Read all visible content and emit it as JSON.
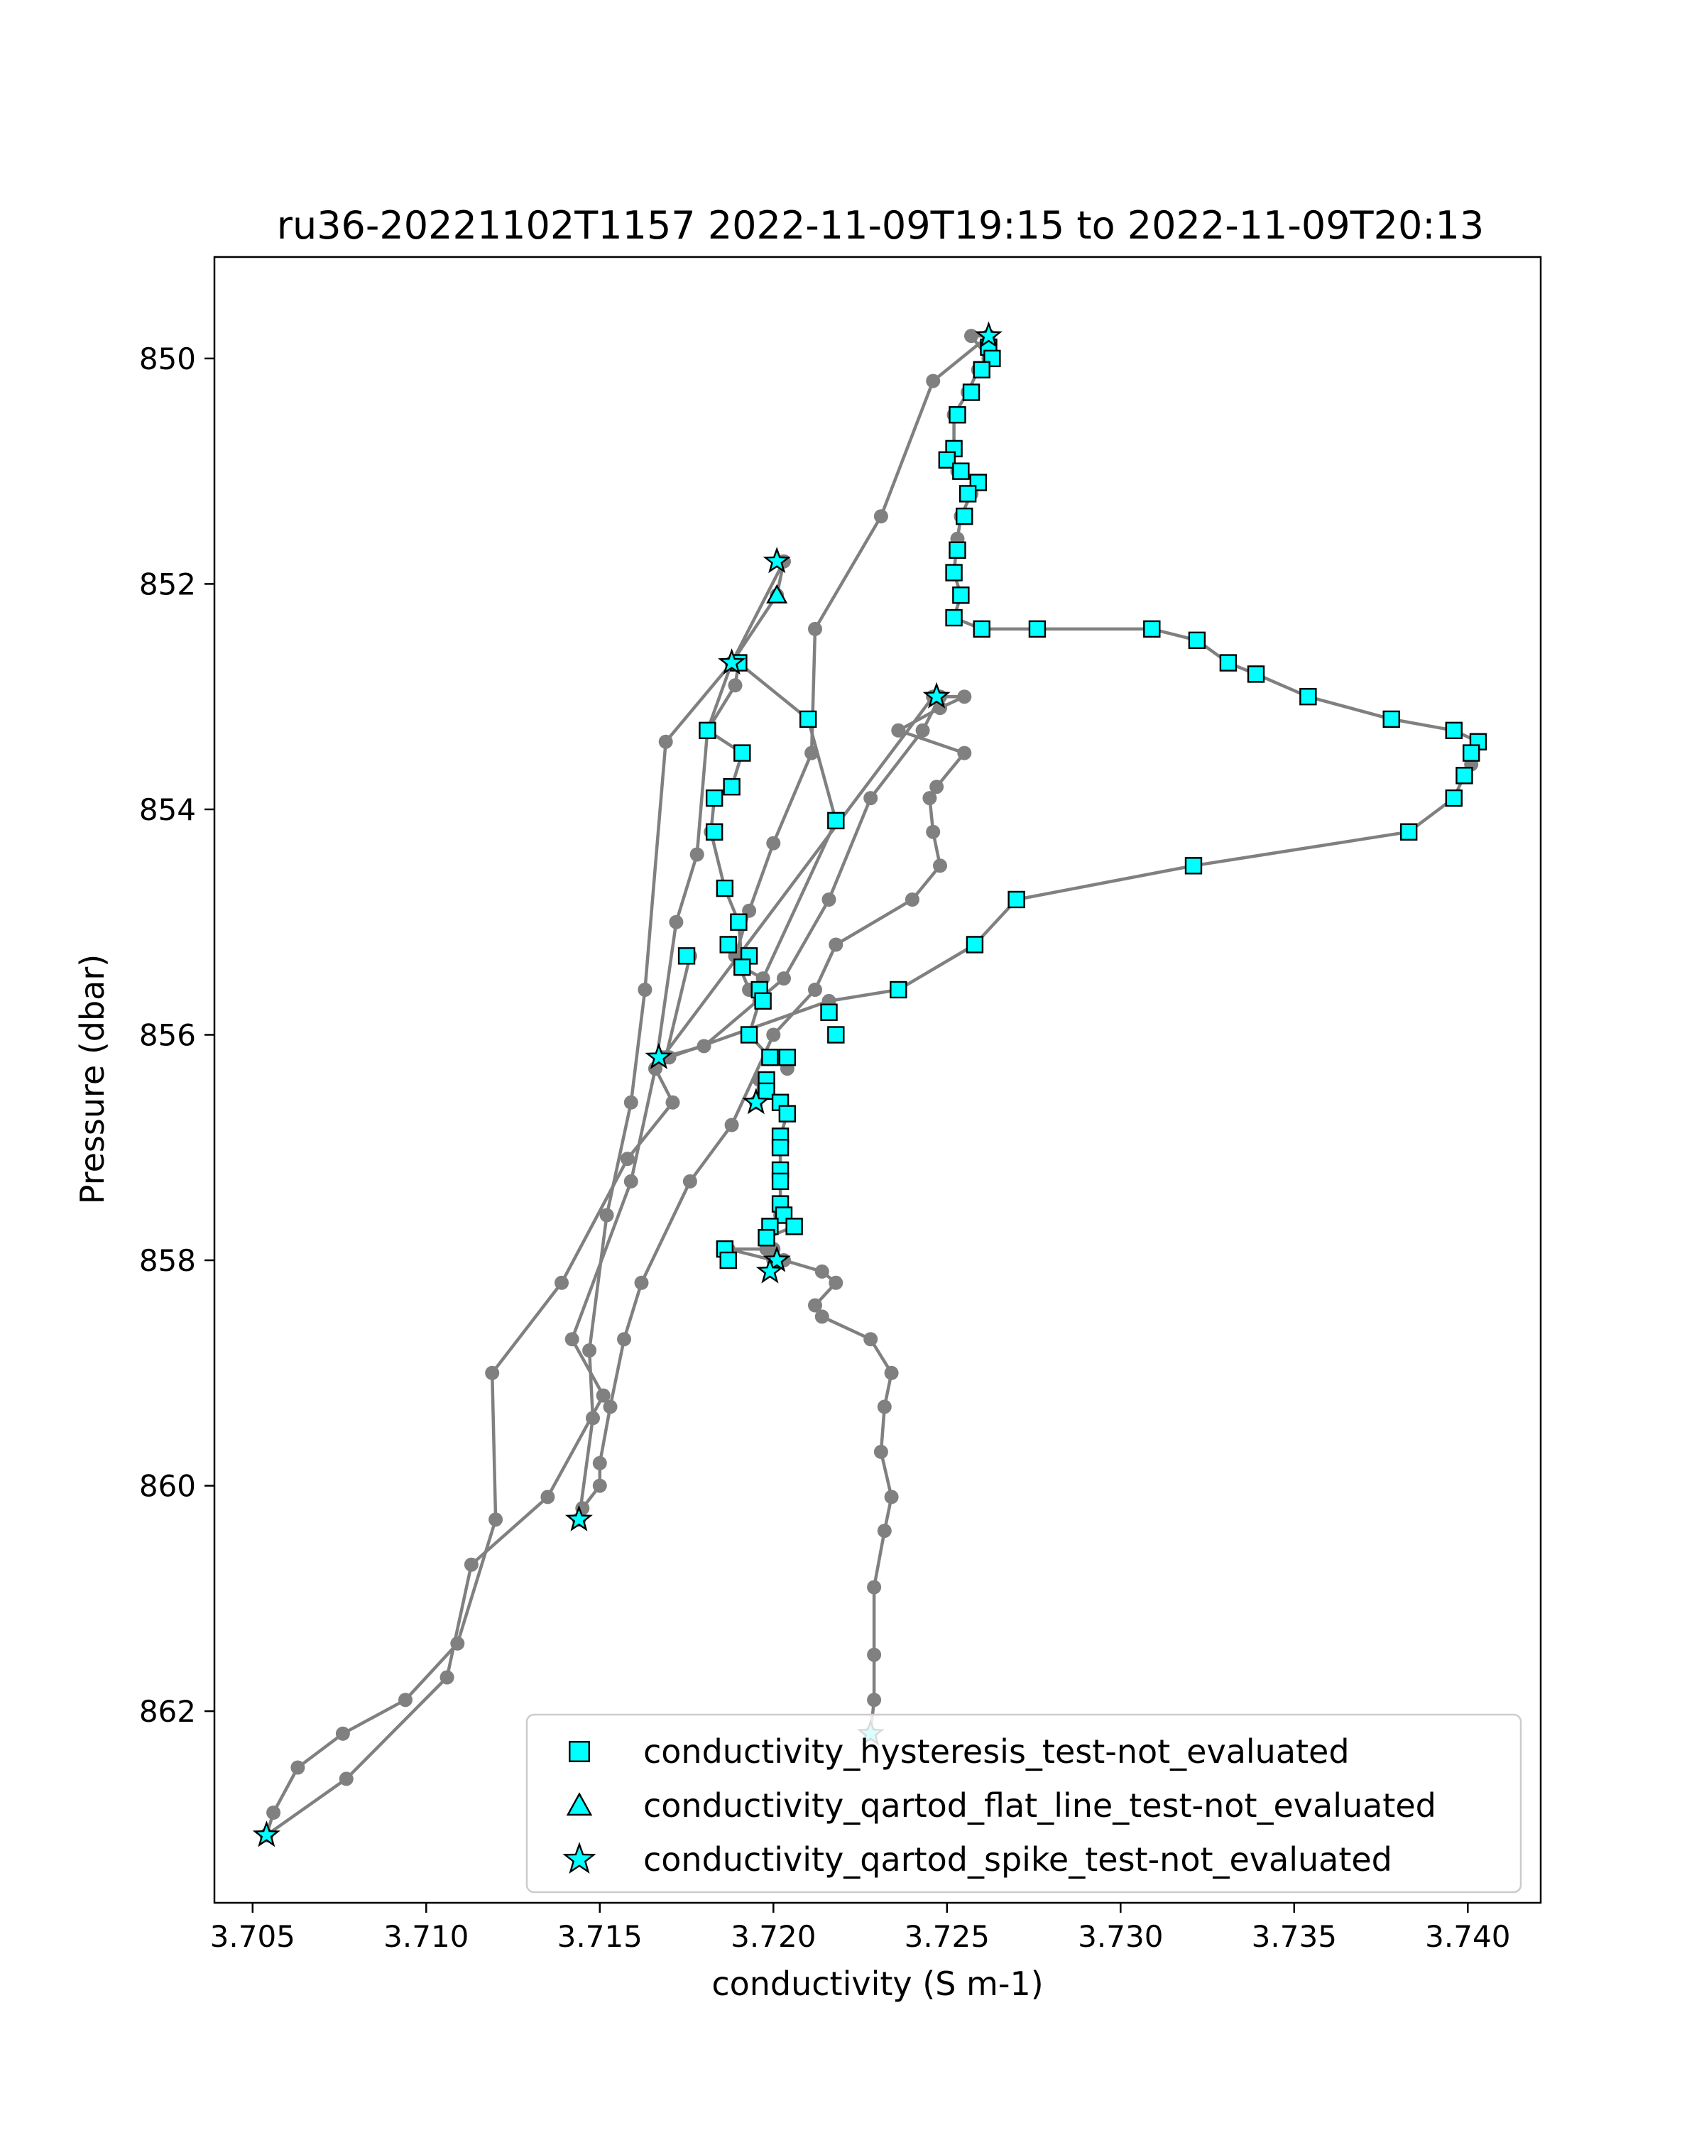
{
  "chart_data": {
    "type": "line",
    "title": "ru36-20221102T1157 2022-11-09T19:15 to 2022-11-09T20:13",
    "xlabel": "conductivity (S m-1)",
    "ylabel": "Pressure (dbar)",
    "xlim": [
      3.7039,
      3.7421
    ],
    "ylim": [
      849.1,
      863.7
    ],
    "y_inverted": true,
    "grid": false,
    "legend_position": "lower-right",
    "xticks": [
      "3.705",
      "3.710",
      "3.715",
      "3.720",
      "3.725",
      "3.730",
      "3.735",
      "3.740"
    ],
    "xtick_values": [
      3.705,
      3.71,
      3.715,
      3.72,
      3.725,
      3.73,
      3.735,
      3.74
    ],
    "yticks": [
      "850",
      "852",
      "854",
      "856",
      "858",
      "860",
      "862"
    ],
    "ytick_values": [
      850,
      852,
      854,
      856,
      858,
      860,
      862
    ],
    "line_color": "#808080",
    "marker_color": "#00ffff",
    "series": [
      {
        "profile": 1,
        "points": [
          [
            3.7054,
            863.1
          ],
          [
            3.7056,
            862.9
          ],
          [
            3.7063,
            862.5
          ],
          [
            3.7076,
            862.2
          ],
          [
            3.7094,
            861.9
          ],
          [
            3.7109,
            861.4
          ],
          [
            3.712,
            860.3
          ],
          [
            3.7119,
            859.0
          ],
          [
            3.7139,
            858.2
          ],
          [
            3.7158,
            857.1
          ],
          [
            3.7171,
            856.6
          ],
          [
            3.7166,
            856.3
          ],
          [
            3.7169,
            856.2
          ],
          [
            3.7176,
            855.3
          ]
        ]
      },
      {
        "profile": 2,
        "points": [
          [
            3.7054,
            863.1
          ],
          [
            3.7077,
            862.6
          ],
          [
            3.7106,
            861.7
          ],
          [
            3.7113,
            860.7
          ],
          [
            3.7135,
            860.1
          ],
          [
            3.7151,
            859.2
          ],
          [
            3.7142,
            858.7
          ],
          [
            3.7159,
            857.3
          ],
          [
            3.7166,
            856.3
          ],
          [
            3.7172,
            855.0
          ],
          [
            3.7178,
            854.4
          ],
          [
            3.7181,
            853.3
          ],
          [
            3.7189,
            852.9
          ],
          [
            3.719,
            852.7
          ],
          [
            3.721,
            853.2
          ],
          [
            3.7218,
            854.1
          ],
          [
            3.7197,
            855.5
          ],
          [
            3.7191,
            855.4
          ],
          [
            3.719,
            855.0
          ],
          [
            3.7186,
            854.7
          ],
          [
            3.7182,
            854.2
          ],
          [
            3.7183,
            853.9
          ],
          [
            3.7188,
            853.8
          ],
          [
            3.7191,
            853.5
          ],
          [
            3.7181,
            853.3
          ],
          [
            3.7188,
            852.7
          ]
        ]
      },
      {
        "profile": 3,
        "points": [
          [
            3.7188,
            852.7
          ],
          [
            3.7201,
            852.1
          ],
          [
            3.7203,
            851.8
          ],
          [
            3.7188,
            852.7
          ],
          [
            3.7169,
            853.4
          ],
          [
            3.7163,
            855.6
          ],
          [
            3.7159,
            856.6
          ],
          [
            3.7152,
            857.6
          ],
          [
            3.7147,
            858.8
          ],
          [
            3.7148,
            859.4
          ],
          [
            3.7144,
            860.3
          ]
        ]
      },
      {
        "profile": 4,
        "points": [
          [
            3.7144,
            860.3
          ],
          [
            3.7145,
            860.2
          ],
          [
            3.715,
            860.0
          ],
          [
            3.715,
            859.8
          ],
          [
            3.7153,
            859.3
          ],
          [
            3.7157,
            858.7
          ],
          [
            3.7162,
            858.2
          ],
          [
            3.7176,
            857.3
          ],
          [
            3.7188,
            856.8
          ],
          [
            3.72,
            856.0
          ],
          [
            3.7212,
            855.6
          ],
          [
            3.7218,
            855.2
          ],
          [
            3.724,
            854.8
          ],
          [
            3.7248,
            854.5
          ],
          [
            3.7246,
            854.2
          ],
          [
            3.7245,
            853.9
          ],
          [
            3.7247,
            853.8
          ],
          [
            3.7255,
            853.5
          ],
          [
            3.7236,
            853.3
          ],
          [
            3.7248,
            853.1
          ],
          [
            3.7255,
            853.0
          ],
          [
            3.7246,
            853.0
          ],
          [
            3.7168,
            856.2
          ],
          [
            3.718,
            856.1
          ],
          [
            3.7203,
            855.5
          ],
          [
            3.7216,
            854.8
          ],
          [
            3.7228,
            853.9
          ],
          [
            3.7243,
            853.3
          ],
          [
            3.7248,
            853.0
          ],
          [
            3.7247,
            853.0
          ]
        ]
      },
      {
        "profile": 5,
        "points": [
          [
            3.717,
            856.2
          ],
          [
            3.7216,
            855.7
          ],
          [
            3.7236,
            855.6
          ],
          [
            3.7258,
            855.2
          ],
          [
            3.727,
            854.8
          ],
          [
            3.7321,
            854.5
          ],
          [
            3.7383,
            854.2
          ],
          [
            3.7396,
            853.9
          ],
          [
            3.7399,
            853.7
          ],
          [
            3.7401,
            853.6
          ],
          [
            3.7403,
            853.4
          ],
          [
            3.7396,
            853.3
          ],
          [
            3.7378,
            853.2
          ],
          [
            3.7354,
            853.0
          ],
          [
            3.7339,
            852.8
          ],
          [
            3.7331,
            852.7
          ],
          [
            3.7322,
            852.5
          ],
          [
            3.7309,
            852.4
          ],
          [
            3.7276,
            852.4
          ],
          [
            3.726,
            852.4
          ],
          [
            3.7252,
            852.3
          ],
          [
            3.7254,
            852.1
          ],
          [
            3.7252,
            851.9
          ],
          [
            3.7253,
            851.6
          ],
          [
            3.7254,
            851.4
          ],
          [
            3.7257,
            851.2
          ],
          [
            3.7259,
            851.1
          ],
          [
            3.7253,
            851.0
          ],
          [
            3.725,
            850.9
          ],
          [
            3.7252,
            850.8
          ],
          [
            3.7252,
            850.5
          ],
          [
            3.7256,
            850.3
          ],
          [
            3.7259,
            850.1
          ],
          [
            3.7262,
            850.0
          ],
          [
            3.7257,
            849.8
          ],
          [
            3.7262,
            849.8
          ],
          [
            3.7246,
            850.2
          ],
          [
            3.7231,
            851.4
          ],
          [
            3.7212,
            852.4
          ],
          [
            3.7211,
            853.5
          ],
          [
            3.72,
            854.3
          ],
          [
            3.7193,
            854.9
          ],
          [
            3.7189,
            855.3
          ],
          [
            3.7193,
            855.6
          ],
          [
            3.7196,
            855.7
          ],
          [
            3.7193,
            856.0
          ],
          [
            3.7199,
            856.2
          ],
          [
            3.7204,
            856.3
          ]
        ]
      },
      {
        "profile": 6,
        "points": [
          [
            3.7195,
            856.6
          ],
          [
            3.7196,
            856.4
          ],
          [
            3.7202,
            856.6
          ],
          [
            3.7204,
            856.7
          ],
          [
            3.7202,
            856.9
          ],
          [
            3.7202,
            857.0
          ],
          [
            3.7202,
            857.2
          ],
          [
            3.7202,
            857.3
          ],
          [
            3.7202,
            857.5
          ],
          [
            3.7202,
            857.6
          ],
          [
            3.7206,
            857.7
          ],
          [
            3.7198,
            857.8
          ],
          [
            3.72,
            857.9
          ],
          [
            3.7198,
            857.9
          ],
          [
            3.7186,
            857.9
          ],
          [
            3.7187,
            857.9
          ],
          [
            3.72,
            858.0
          ],
          [
            3.7203,
            858.0
          ],
          [
            3.7214,
            858.1
          ],
          [
            3.7218,
            858.2
          ],
          [
            3.7212,
            858.4
          ],
          [
            3.7214,
            858.5
          ],
          [
            3.7228,
            858.7
          ],
          [
            3.7234,
            859.0
          ],
          [
            3.7232,
            859.3
          ],
          [
            3.7231,
            859.7
          ],
          [
            3.7234,
            860.1
          ],
          [
            3.7232,
            860.4
          ],
          [
            3.7229,
            860.9
          ],
          [
            3.7229,
            861.5
          ],
          [
            3.7229,
            861.9
          ],
          [
            3.7228,
            862.2
          ]
        ]
      }
    ],
    "markers": {
      "hysteresis": [
        [
          3.7262,
          849.9
        ],
        [
          3.7263,
          850.0
        ],
        [
          3.726,
          850.1
        ],
        [
          3.7257,
          850.3
        ],
        [
          3.7253,
          850.5
        ],
        [
          3.7252,
          850.8
        ],
        [
          3.725,
          850.9
        ],
        [
          3.7254,
          851.0
        ],
        [
          3.7259,
          851.1
        ],
        [
          3.7256,
          851.2
        ],
        [
          3.7255,
          851.4
        ],
        [
          3.7253,
          851.7
        ],
        [
          3.7252,
          851.9
        ],
        [
          3.7254,
          852.1
        ],
        [
          3.7252,
          852.3
        ],
        [
          3.726,
          852.4
        ],
        [
          3.7276,
          852.4
        ],
        [
          3.7309,
          852.4
        ],
        [
          3.7322,
          852.5
        ],
        [
          3.7331,
          852.7
        ],
        [
          3.7339,
          852.8
        ],
        [
          3.7354,
          853.0
        ],
        [
          3.7378,
          853.2
        ],
        [
          3.7396,
          853.3
        ],
        [
          3.7403,
          853.4
        ],
        [
          3.7401,
          853.5
        ],
        [
          3.7399,
          853.7
        ],
        [
          3.7396,
          853.9
        ],
        [
          3.7383,
          854.2
        ],
        [
          3.7321,
          854.5
        ],
        [
          3.727,
          854.8
        ],
        [
          3.7258,
          855.2
        ],
        [
          3.7236,
          855.6
        ],
        [
          3.7216,
          855.8
        ],
        [
          3.7218,
          856.0
        ],
        [
          3.719,
          852.7
        ],
        [
          3.721,
          853.2
        ],
        [
          3.7181,
          853.3
        ],
        [
          3.7191,
          853.5
        ],
        [
          3.7188,
          853.8
        ],
        [
          3.7183,
          853.9
        ],
        [
          3.7218,
          854.1
        ],
        [
          3.7183,
          854.2
        ],
        [
          3.7186,
          854.7
        ],
        [
          3.719,
          855.0
        ],
        [
          3.7187,
          855.2
        ],
        [
          3.7193,
          855.3
        ],
        [
          3.7191,
          855.4
        ],
        [
          3.7175,
          855.3
        ],
        [
          3.7196,
          855.6
        ],
        [
          3.7197,
          855.7
        ],
        [
          3.7193,
          856.0
        ],
        [
          3.7199,
          856.2
        ],
        [
          3.7204,
          856.2
        ],
        [
          3.7198,
          856.4
        ],
        [
          3.7198,
          856.5
        ],
        [
          3.7202,
          856.6
        ],
        [
          3.7204,
          856.7
        ],
        [
          3.7202,
          856.9
        ],
        [
          3.7202,
          857.0
        ],
        [
          3.7202,
          857.2
        ],
        [
          3.7202,
          857.3
        ],
        [
          3.7202,
          857.5
        ],
        [
          3.7203,
          857.6
        ],
        [
          3.7206,
          857.7
        ],
        [
          3.7199,
          857.7
        ],
        [
          3.7198,
          857.8
        ],
        [
          3.7186,
          857.9
        ],
        [
          3.7187,
          858.0
        ]
      ],
      "flat_line": [
        [
          3.7201,
          852.1
        ]
      ],
      "spike": [
        [
          3.7262,
          849.8
        ],
        [
          3.7201,
          851.8
        ],
        [
          3.7188,
          852.7
        ],
        [
          3.7247,
          853.0
        ],
        [
          3.7167,
          856.2
        ],
        [
          3.7195,
          856.6
        ],
        [
          3.7201,
          858.0
        ],
        [
          3.7199,
          858.1
        ],
        [
          3.7144,
          860.3
        ],
        [
          3.7228,
          862.2
        ],
        [
          3.7054,
          863.1
        ]
      ]
    },
    "legend": [
      {
        "key": "hysteresis",
        "label": "conductivity_hysteresis_test-not_evaluated",
        "symbol": "square"
      },
      {
        "key": "flat_line",
        "label": "conductivity_qartod_flat_line_test-not_evaluated",
        "symbol": "triangle"
      },
      {
        "key": "spike",
        "label": "conductivity_qartod_spike_test-not_evaluated",
        "symbol": "star"
      }
    ]
  }
}
